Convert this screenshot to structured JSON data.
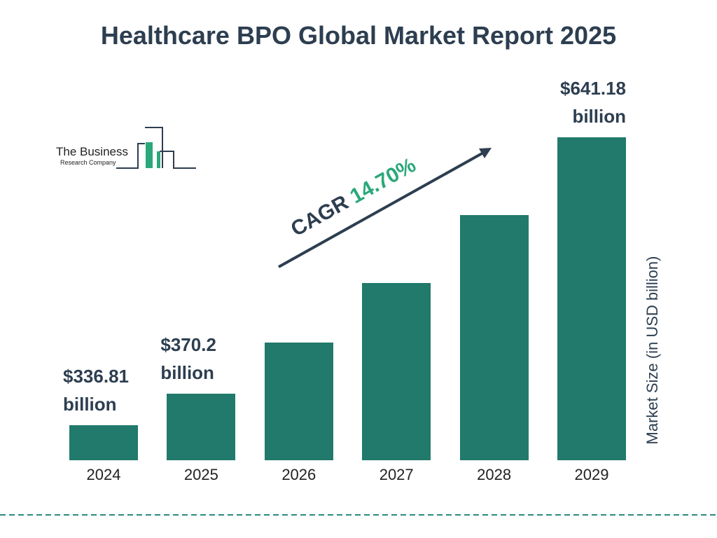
{
  "chart_data": {
    "type": "bar",
    "title": "Healthcare BPO Global Market Report 2025",
    "categories": [
      "2024",
      "2025",
      "2026",
      "2027",
      "2028",
      "2029"
    ],
    "values": [
      336.81,
      370.2,
      424.6,
      487.1,
      558.7,
      641.18
    ],
    "value_labels": [
      "$336.81 billion",
      "$370.2 billion",
      null,
      null,
      null,
      "$641.18 billion"
    ],
    "color": "#217a6c",
    "ylim": [
      300,
      650
    ],
    "y_axis_label": "Market Size (in USD billion)",
    "annotation": {
      "label": "CAGR",
      "value": "14.70%"
    },
    "logo": {
      "line1": "The Business",
      "line2": "Research Company"
    }
  }
}
